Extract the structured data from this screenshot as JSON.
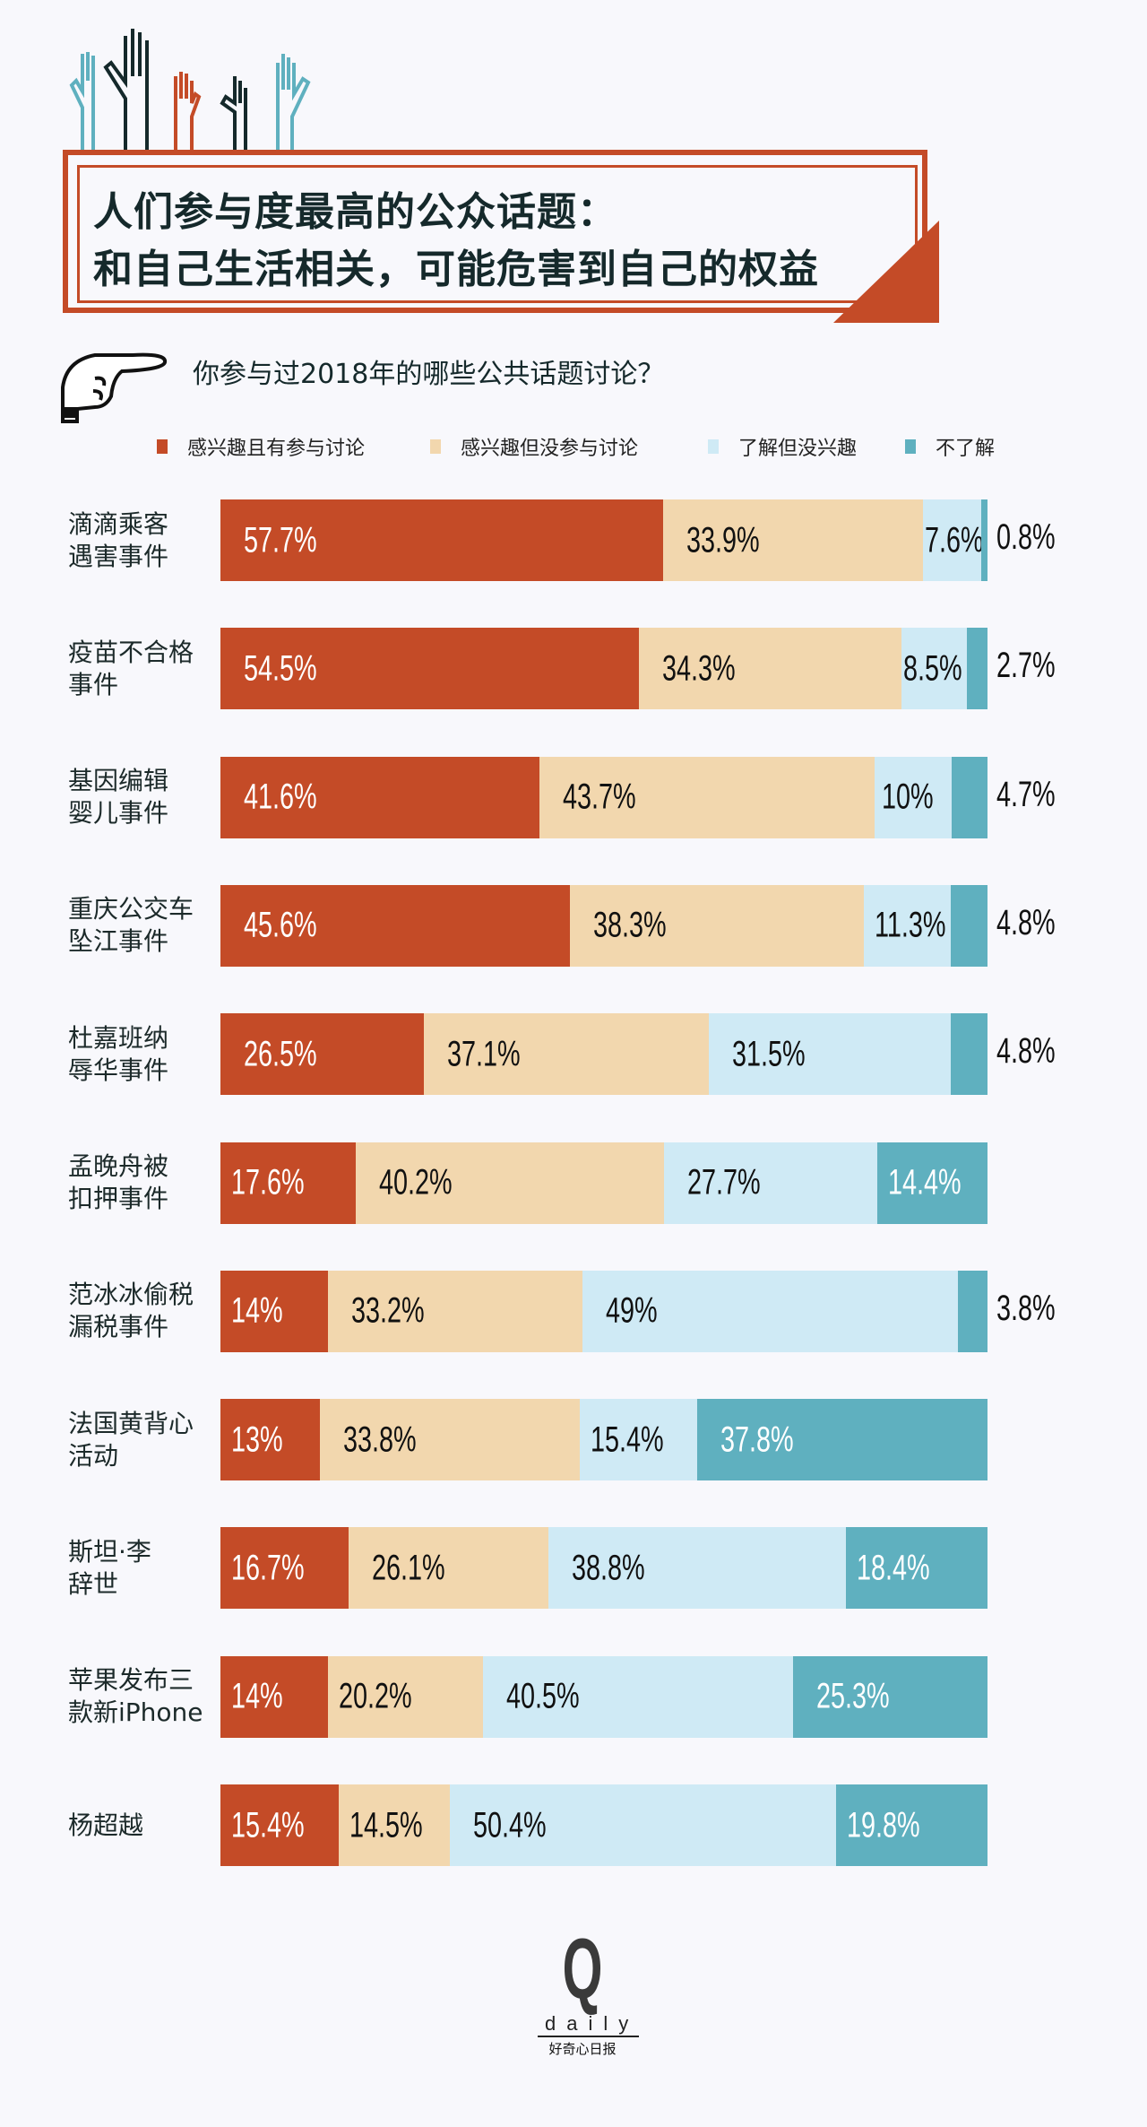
{
  "header": {
    "title_line1": "人们参与度最高的公众话题：",
    "title_line2": "和自己生活相关，可能危害到自己的权益"
  },
  "question": "你参与过2018年的哪些公共话题讨论？",
  "logo": {
    "letter": "Q",
    "word": "daily",
    "cn": "好奇心日报"
  },
  "chart_data": {
    "type": "bar",
    "orientation": "horizontal-stacked-100",
    "title": "你参与过2018年的哪些公共话题讨论？",
    "legend_position": "top",
    "series": [
      {
        "name": "感兴趣且有参与讨论",
        "color": "#c44b27",
        "values": [
          57.7,
          54.5,
          41.6,
          45.6,
          26.5,
          17.6,
          14,
          13,
          16.7,
          14,
          15.4
        ]
      },
      {
        "name": "感兴趣但没参与讨论",
        "color": "#f2d7ae",
        "values": [
          33.9,
          34.3,
          43.7,
          38.3,
          37.1,
          40.2,
          33.2,
          33.8,
          26.1,
          20.2,
          14.5
        ]
      },
      {
        "name": "了解但没兴趣",
        "color": "#cfeaf5",
        "values": [
          7.6,
          8.5,
          10,
          11.3,
          31.5,
          27.7,
          49,
          15.4,
          38.8,
          40.5,
          50.4
        ]
      },
      {
        "name": "不了解",
        "color": "#5fb0bf",
        "values": [
          0.8,
          2.7,
          4.7,
          4.8,
          4.8,
          14.4,
          3.8,
          37.8,
          18.4,
          25.3,
          19.8
        ]
      }
    ],
    "categories": [
      [
        "滴滴乘客",
        "遇害事件"
      ],
      [
        "疫苗不合格",
        "事件"
      ],
      [
        "基因编辑",
        "婴儿事件"
      ],
      [
        "重庆公交车",
        "坠江事件"
      ],
      [
        "杜嘉班纳",
        "辱华事件"
      ],
      [
        "孟晚舟被",
        "扣押事件"
      ],
      [
        "范冰冰偷税",
        "漏税事件"
      ],
      [
        "法国黄背心",
        "活动"
      ],
      [
        "斯坦·李",
        "辞世"
      ],
      [
        "苹果发布三",
        "款新iPhone"
      ],
      [
        "杨超越"
      ]
    ],
    "unit": "%"
  }
}
